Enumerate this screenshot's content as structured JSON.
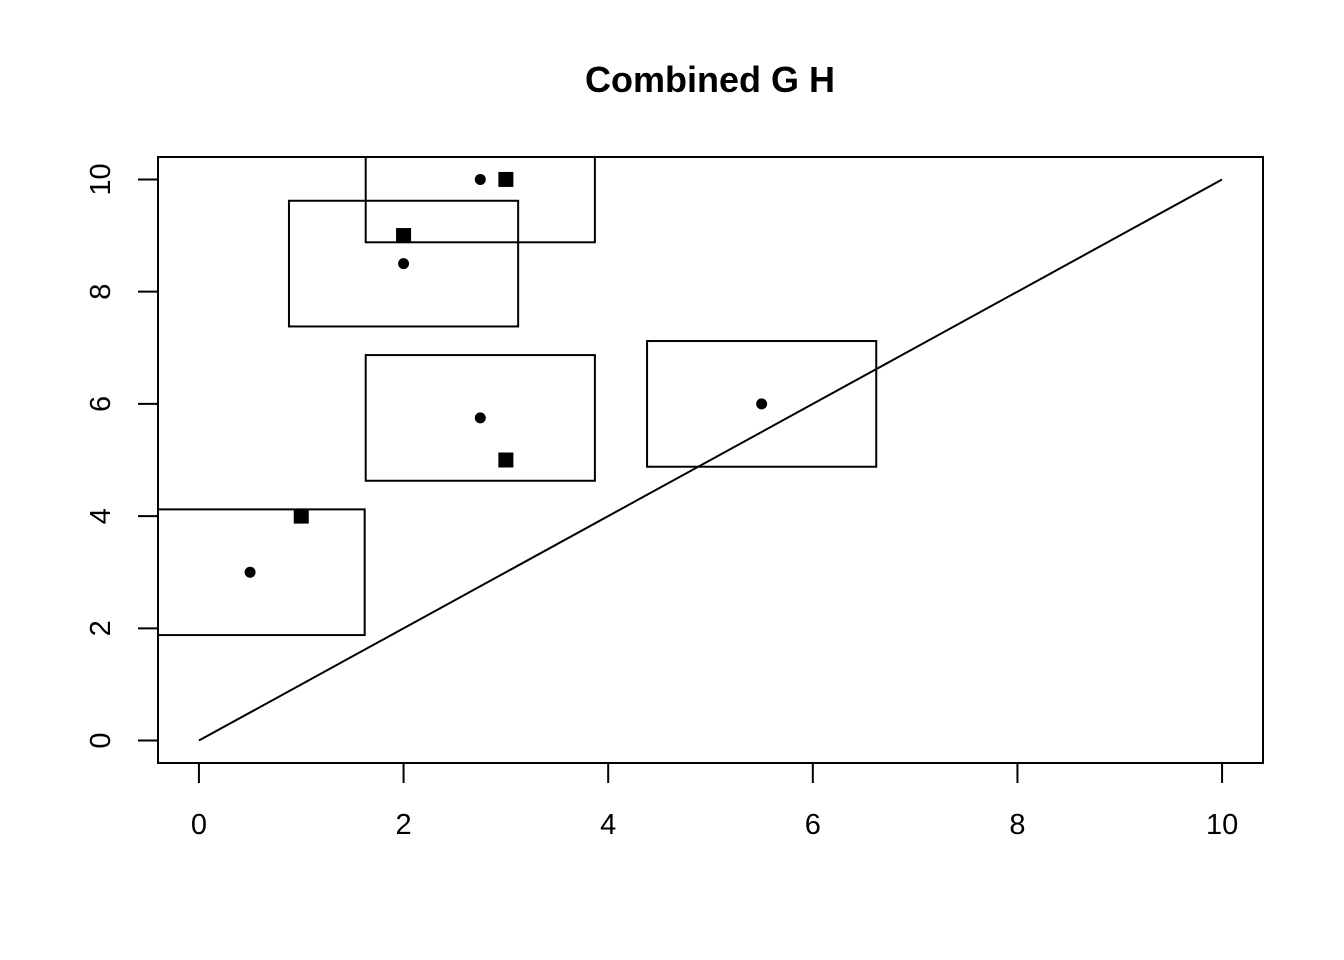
{
  "chart_data": {
    "type": "scatter",
    "title": "Combined G H",
    "xlabel": "",
    "ylabel": "",
    "xlim": [
      -0.4,
      10.4
    ],
    "ylim": [
      -0.4,
      10.4
    ],
    "x_ticks": [
      0,
      2,
      4,
      6,
      8,
      10
    ],
    "y_ticks": [
      0,
      2,
      4,
      6,
      8,
      10
    ],
    "grid": false,
    "legend": "none",
    "color": "#000000",
    "series": [
      {
        "marker": "circle",
        "points": [
          {
            "x": 0.5,
            "y": 3
          },
          {
            "x": 2.75,
            "y": 5.75
          },
          {
            "x": 2,
            "y": 8.5
          },
          {
            "x": 2.75,
            "y": 10
          },
          {
            "x": 5.5,
            "y": 6
          }
        ]
      },
      {
        "marker": "square",
        "points": [
          {
            "x": 1,
            "y": 4
          },
          {
            "x": 3,
            "y": 5
          },
          {
            "x": 2,
            "y": 9
          },
          {
            "x": 3,
            "y": 10
          }
        ]
      }
    ],
    "rectangles": [
      {
        "x0": -0.4,
        "x1": 1.62,
        "y0": 1.88,
        "y1": 4.12
      },
      {
        "x0": 1.63,
        "x1": 3.87,
        "y0": 4.63,
        "y1": 6.87
      },
      {
        "x0": 0.88,
        "x1": 3.12,
        "y0": 7.38,
        "y1": 9.62
      },
      {
        "x0": 1.63,
        "x1": 3.87,
        "y0": 8.88,
        "y1": 10.4
      },
      {
        "x0": 4.38,
        "x1": 6.62,
        "y0": 4.88,
        "y1": 7.12
      }
    ],
    "lines": [
      {
        "x": [
          0,
          10
        ],
        "y": [
          0,
          10
        ]
      }
    ]
  }
}
